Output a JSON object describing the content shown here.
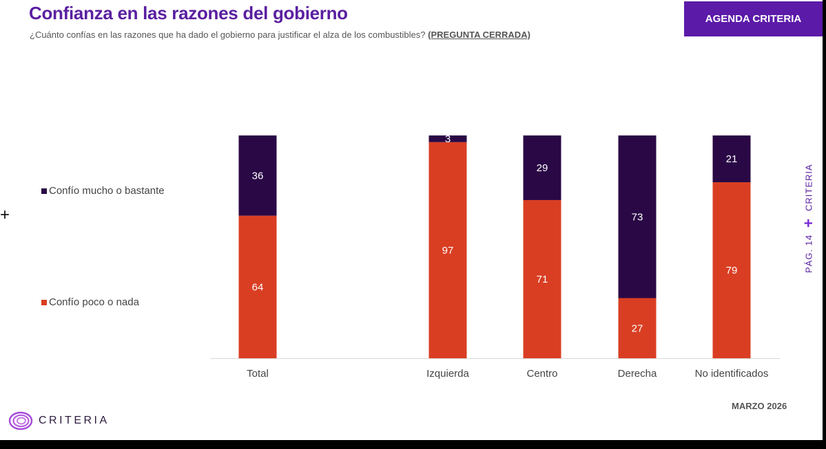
{
  "header": {
    "title": "Confianza en las razones del gobierno",
    "subtitle": "¿Cuánto confías en las razones que ha dado el gobierno para justificar el alza de los combustibles?",
    "question_type": "(PREGUNTA CERRADA)",
    "agenda_label": "AGENDA CRITERIA"
  },
  "side": {
    "brand": "CRITERIA",
    "page": "PÁG. 14"
  },
  "footer": {
    "date": "MARZO 2026",
    "logo_text": "CRITERIA"
  },
  "icons": {
    "left_marker": "plus-icon",
    "logo": "criteria-spiral-logo-icon"
  },
  "colors": {
    "title": "#5a1fa0",
    "agenda_bg": "#5b1aa8",
    "series_mucho": "#2a0845",
    "series_poco": "#d93e23",
    "side_text": "#5a1fa0",
    "side_plus": "#7b2bd6",
    "baseline": "#d8d8d8",
    "tick_label": "#444444"
  },
  "chart_data": {
    "type": "bar",
    "stacked": true,
    "percent": true,
    "categories": [
      "Total",
      "Izquierda",
      "Centro",
      "Derecha",
      "No identificados"
    ],
    "series": [
      {
        "name": "Confío poco o nada",
        "values": [
          64,
          97,
          71,
          27,
          79
        ]
      },
      {
        "name": "Confío mucho o bastante",
        "values": [
          36,
          3,
          29,
          73,
          21
        ]
      }
    ],
    "ylim": [
      0,
      100
    ],
    "legend": [
      {
        "label": "Confío mucho o bastante",
        "series": "Confío mucho o bastante"
      },
      {
        "label": "Confío poco o nada",
        "series": "Confío poco o nada"
      }
    ],
    "legend_position": "left",
    "title": "Confianza en las razones del gobierno",
    "xlabel": "",
    "ylabel": "",
    "grid": false
  }
}
